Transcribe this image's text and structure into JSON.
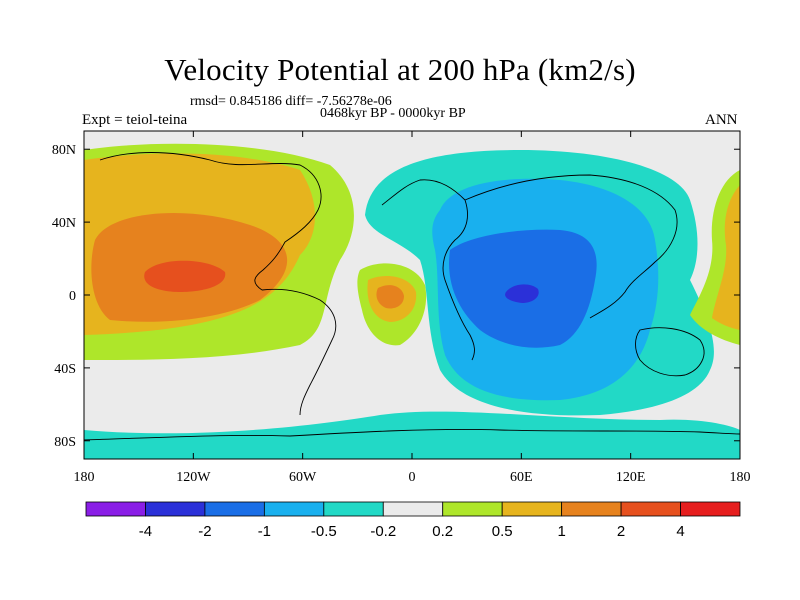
{
  "title": "Velocity Potential at 200 hPa (km2/s)",
  "stats": "rmsd= 0.845186 diff= -7.56278e-06",
  "period": "0468kyr BP - 0000kyr BP",
  "experiment": "Expt = teiol-teina",
  "season": "ANN",
  "lat_ticks": [
    {
      "label": "80N",
      "value": 80
    },
    {
      "label": "40N",
      "value": 40
    },
    {
      "label": "0",
      "value": 0
    },
    {
      "label": "40S",
      "value": -40
    },
    {
      "label": "80S",
      "value": -80
    }
  ],
  "lon_ticks": [
    {
      "label": "180",
      "value": -180
    },
    {
      "label": "120W",
      "value": -120
    },
    {
      "label": "60W",
      "value": -60
    },
    {
      "label": "0",
      "value": 0
    },
    {
      "label": "60E",
      "value": 60
    },
    {
      "label": "120E",
      "value": 120
    },
    {
      "label": "180",
      "value": 180
    }
  ],
  "colorbar": {
    "colors": [
      "#8a1ee6",
      "#2b30d8",
      "#1a6ee6",
      "#19b0ee",
      "#22d9c6",
      "#ebebeb",
      "#aee62a",
      "#e6b41e",
      "#e6821e",
      "#e6501e",
      "#e61e1e"
    ],
    "labels": [
      "-4",
      "-2",
      "-1",
      "-0.5",
      "-0.2",
      "0.2",
      "0.5",
      "1",
      "2",
      "4"
    ]
  },
  "palette": {
    "c_lowest": "#2b30d8",
    "c_low": "#1a6ee6",
    "c_mid_low": "#19b0ee",
    "c_near_zero_neg": "#22d9c6",
    "c_zero": "#ebebeb",
    "c_near_zero_pos": "#aee62a",
    "c_pos": "#e6b41e",
    "c_pos_high": "#e6821e",
    "c_pos_highest": "#e6501e"
  }
}
